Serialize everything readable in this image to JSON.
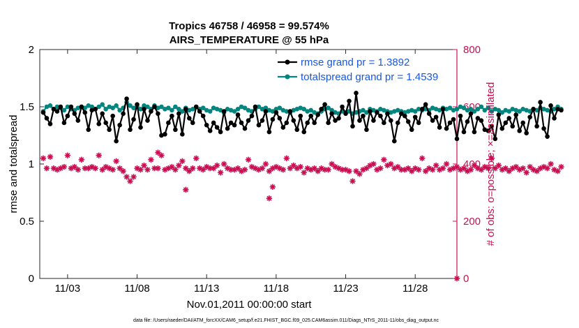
{
  "chart_data": {
    "type": "line",
    "title": "Tropics 46758 / 46958 = 99.574%",
    "subtitle": "AIRS_TEMPERATURE @ 55 hPa",
    "xlabel": "Nov.01,2011 00:00:00 start",
    "ylabel_left": "rmse and totalspread",
    "ylabel_right": "# of obs: o=possible; ×=assimilated",
    "footer": "data file: /Users/raeder/DAI/ATM_forcXX/CAM6_setup/f.e21.FHIST_BGC.f09_025.CAM6assim.011/Diags_NTrS_2011-11/obs_diag_output.nc",
    "xlim": [
      0,
      30
    ],
    "x_ticks": [
      2,
      7,
      12,
      17,
      22,
      27
    ],
    "x_tick_labels": [
      "11/03",
      "11/08",
      "11/13",
      "11/18",
      "11/23",
      "11/28"
    ],
    "ylim_left": [
      0,
      2
    ],
    "y_left_ticks": [
      0,
      0.5,
      1,
      1.5,
      2
    ],
    "y_left_tick_labels": [
      "0",
      "0.5",
      "1",
      "1.5",
      "2"
    ],
    "ylim_right": [
      0,
      800
    ],
    "y_right_ticks": [
      0,
      200,
      400,
      600,
      800
    ],
    "y_right_tick_labels": [
      "0",
      "200",
      "400",
      "600",
      "800"
    ],
    "x_step_days": 0.25,
    "legend": {
      "placement": "top-right",
      "entries": [
        "rmse grand pr = 1.3892",
        "totalspread grand pr = 1.4539"
      ]
    },
    "series": [
      {
        "name": "rmse grand pr = 1.3892",
        "axis": "left",
        "color": "#000000",
        "values": [
          1.45,
          1.4,
          1.35,
          1.48,
          1.46,
          1.5,
          1.36,
          1.42,
          1.5,
          1.44,
          1.38,
          1.5,
          1.45,
          1.3,
          1.47,
          1.48,
          1.35,
          1.44,
          1.36,
          1.3,
          1.42,
          1.2,
          1.34,
          1.44,
          1.57,
          1.3,
          1.39,
          1.52,
          1.32,
          1.48,
          1.38,
          1.46,
          1.5,
          1.44,
          1.25,
          1.26,
          1.36,
          1.42,
          1.3,
          1.44,
          1.26,
          1.48,
          1.4,
          1.36,
          1.5,
          1.46,
          1.42,
          1.34,
          1.29,
          1.36,
          1.32,
          1.28,
          1.46,
          1.31,
          1.36,
          1.34,
          1.43,
          1.36,
          1.31,
          1.38,
          1.42,
          1.5,
          1.34,
          1.38,
          1.46,
          1.28,
          1.39,
          1.45,
          1.4,
          1.32,
          1.36,
          1.46,
          1.38,
          1.3,
          1.42,
          1.28,
          1.36,
          1.42,
          1.36,
          1.43,
          1.48,
          1.52,
          1.36,
          1.44,
          1.38,
          1.4,
          1.5,
          1.44,
          1.55,
          1.33,
          1.62,
          1.38,
          1.42,
          1.3,
          1.46,
          1.38,
          1.45,
          1.42,
          1.36,
          1.44,
          1.38,
          1.2,
          1.36,
          1.44,
          1.42,
          1.37,
          1.3,
          1.41,
          1.36,
          1.48,
          1.52,
          1.44,
          1.38,
          1.41,
          1.32,
          1.48,
          1.31,
          1.36,
          1.39,
          1.22,
          1.42,
          1.28,
          1.37,
          1.44,
          1.28,
          1.4,
          1.38,
          1.3,
          1.29,
          1.33,
          1.22,
          1.43,
          1.31,
          1.36,
          1.4,
          1.33,
          1.43,
          1.29,
          1.36,
          1.27,
          1.41,
          1.48,
          1.33,
          1.54,
          1.31,
          1.24,
          1.51,
          1.4,
          1.48,
          1.47
        ],
        "note": "first point at x=0.25"
      },
      {
        "name": "totalspread grand pr = 1.4539",
        "axis": "left",
        "color": "#00857f",
        "values": [
          1.46,
          1.5,
          1.51,
          1.48,
          1.5,
          1.49,
          1.47,
          1.5,
          1.48,
          1.47,
          1.49,
          1.5,
          1.49,
          1.51,
          1.5,
          1.48,
          1.5,
          1.52,
          1.48,
          1.5,
          1.49,
          1.51,
          1.47,
          1.49,
          1.54,
          1.51,
          1.49,
          1.5,
          1.48,
          1.51,
          1.5,
          1.48,
          1.51,
          1.49,
          1.5,
          1.48,
          1.49,
          1.47,
          1.5,
          1.48,
          1.46,
          1.49,
          1.47,
          1.48,
          1.5,
          1.48,
          1.49,
          1.47,
          1.46,
          1.49,
          1.48,
          1.47,
          1.45,
          1.48,
          1.47,
          1.46,
          1.48,
          1.5,
          1.49,
          1.47,
          1.46,
          1.48,
          1.5,
          1.48,
          1.49,
          1.47,
          1.46,
          1.48,
          1.49,
          1.47,
          1.46,
          1.45,
          1.47,
          1.48,
          1.49,
          1.48,
          1.46,
          1.47,
          1.45,
          1.44,
          1.46,
          1.48,
          1.49,
          1.47,
          1.45,
          1.44,
          1.46,
          1.45,
          1.46,
          1.44,
          1.45,
          1.46,
          1.47,
          1.45,
          1.48,
          1.47,
          1.46,
          1.48,
          1.47,
          1.46,
          1.45,
          1.46,
          1.47,
          1.46,
          1.45,
          1.46,
          1.47,
          1.46,
          1.48,
          1.47,
          1.48,
          1.47,
          1.49,
          1.48,
          1.47,
          1.49,
          1.48,
          1.49,
          1.47,
          1.48,
          1.5,
          1.49,
          1.47,
          1.48,
          1.46,
          1.48,
          1.5,
          1.47,
          1.49,
          1.46,
          1.48,
          1.47,
          1.45,
          1.47,
          1.46,
          1.48,
          1.47,
          1.46,
          1.48,
          1.47,
          1.46,
          1.48,
          1.47,
          1.49,
          1.48,
          1.47,
          1.46,
          1.48,
          1.5,
          1.48
        ],
        "note": "first point at x=0.25"
      },
      {
        "name": "observations possible / assimilated",
        "axis": "right",
        "color": "#cc0d52",
        "values": [
          420,
          385,
          425,
          385,
          380,
          385,
          390,
          430,
          385,
          390,
          380,
          415,
          385,
          385,
          390,
          385,
          430,
          380,
          390,
          385,
          380,
          410,
          385,
          375,
          355,
          340,
          355,
          385,
          380,
          395,
          380,
          415,
          385,
          385,
          430,
          380,
          385,
          390,
          380,
          395,
          410,
          385,
          375,
          385,
          420,
          385,
          380,
          390,
          385,
          385,
          395,
          370,
          400,
          385,
          380,
          380,
          385,
          375,
          380,
          415,
          390,
          385,
          380,
          385,
          400,
          375,
          385,
          390,
          385,
          380,
          420,
          385,
          395,
          385,
          390,
          370,
          385,
          380,
          385,
          375,
          385,
          380,
          380,
          400,
          390,
          385,
          380,
          380,
          375,
          340,
          375,
          365,
          380,
          385,
          395,
          400,
          380,
          385,
          415,
          395,
          400,
          385,
          390,
          380,
          380,
          385,
          375,
          385,
          380,
          420,
          375,
          385,
          380,
          395,
          380,
          385,
          400,
          380,
          385,
          390,
          380,
          385,
          375,
          380,
          395,
          385,
          380,
          390,
          385,
          420,
          385,
          395,
          380,
          385,
          375,
          385,
          390,
          380,
          385,
          370,
          390,
          380,
          375,
          385,
          390,
          385,
          400,
          380,
          375,
          390
        ],
        "note": "first point at x=0.25"
      }
    ],
    "obs_extra_markers": [
      {
        "x": 8.5,
        "value": 440
      },
      {
        "x": 10.5,
        "value": 310
      },
      {
        "x": 16.5,
        "value": 280
      },
      {
        "x": 16.75,
        "value": 320
      }
    ]
  }
}
